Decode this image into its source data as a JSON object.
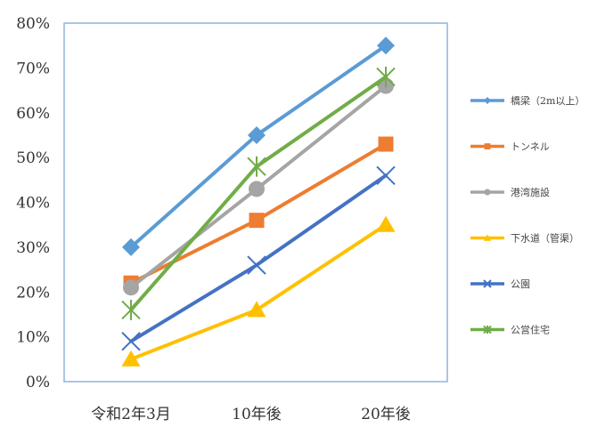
{
  "chart_data": {
    "type": "line",
    "categories": [
      "令和2年3月",
      "10年後",
      "20年後"
    ],
    "ylim": [
      0,
      80
    ],
    "yticks": [
      "0%",
      "10%",
      "20%",
      "30%",
      "40%",
      "50%",
      "60%",
      "70%",
      "80%"
    ],
    "grid": false,
    "legend_position": "right",
    "series": [
      {
        "name": "橋梁（2m以上）",
        "values": [
          30,
          55,
          75
        ],
        "color": "#5b9bd5",
        "marker": "diamond"
      },
      {
        "name": "トンネル",
        "values": [
          22,
          36,
          53
        ],
        "color": "#ed7d31",
        "marker": "square"
      },
      {
        "name": "港湾施設",
        "values": [
          21,
          43,
          66
        ],
        "color": "#a5a5a5",
        "marker": "circle"
      },
      {
        "name": "下水道（管渠）",
        "values": [
          5,
          16,
          35
        ],
        "color": "#ffc000",
        "marker": "triangle"
      },
      {
        "name": "公園",
        "values": [
          9,
          26,
          46
        ],
        "color": "#4472c4",
        "marker": "x"
      },
      {
        "name": "公営住宅",
        "values": [
          16,
          48,
          68
        ],
        "color": "#70ad47",
        "marker": "star"
      }
    ]
  }
}
